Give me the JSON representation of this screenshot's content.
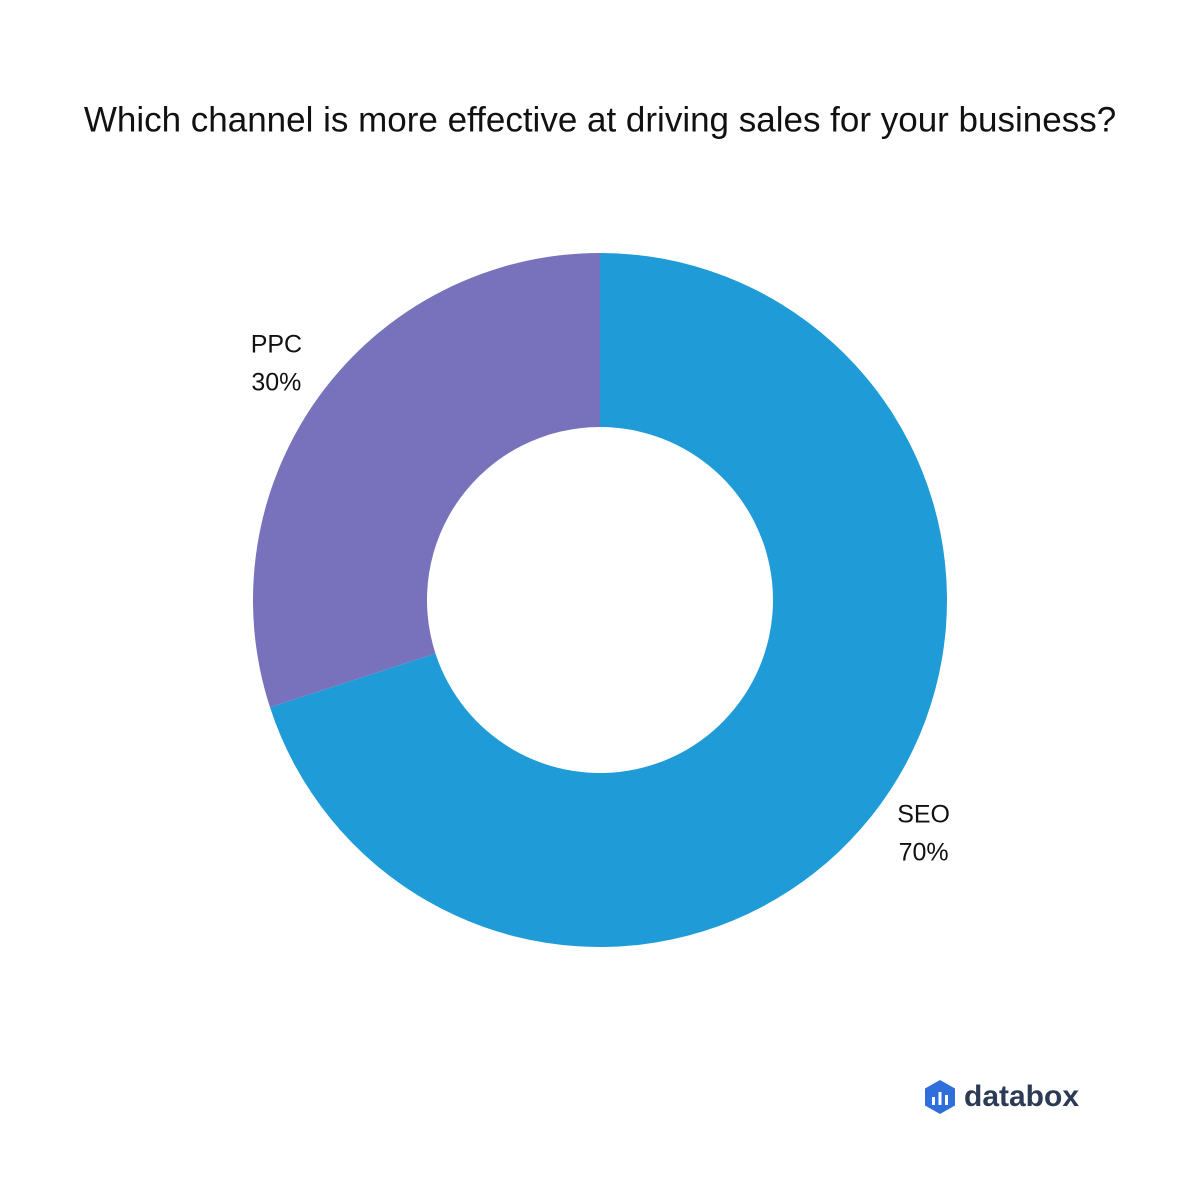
{
  "chart_data": {
    "type": "donut",
    "title": "Which channel is more effective at driving sales for your business?",
    "categories": [
      "SEO",
      "PPC"
    ],
    "values": [
      70,
      30
    ],
    "value_labels": [
      "70%",
      "30%"
    ],
    "colors": [
      "#1f9bd7",
      "#7872bd"
    ]
  },
  "footer": {
    "logo_text": "databox"
  }
}
